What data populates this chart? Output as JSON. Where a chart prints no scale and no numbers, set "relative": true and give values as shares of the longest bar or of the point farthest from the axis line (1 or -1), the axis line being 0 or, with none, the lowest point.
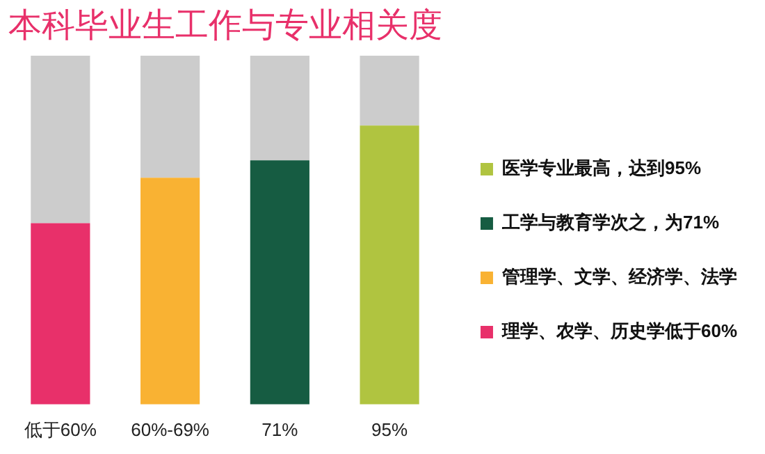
{
  "chart_data": {
    "type": "bar",
    "title": "本科毕业生工作与专业相关度",
    "categories": [
      "低于60%",
      "60%-69%",
      "71%",
      "95%"
    ],
    "series": [
      {
        "name": "理学、农学、历史学低于60%",
        "color": "#e8306a",
        "values": [
          0.52,
          null,
          null,
          null
        ]
      },
      {
        "name": "管理学、文学、经济学、法学",
        "color": "#f9b233",
        "values": [
          null,
          0.65,
          null,
          null
        ]
      },
      {
        "name": "工学与教育学次之，为71%",
        "color": "#165c42",
        "values": [
          null,
          null,
          0.7,
          null
        ]
      },
      {
        "name": "医学专业最高，达到95%",
        "color": "#b0c440",
        "values": [
          null,
          null,
          null,
          0.8
        ]
      },
      {
        "color": "#cccccc",
        "values": [
          0.48,
          0.35,
          0.3,
          0.2
        ]
      }
    ],
    "stacked": true,
    "relative": true,
    "legend": "right",
    "grid": false
  }
}
